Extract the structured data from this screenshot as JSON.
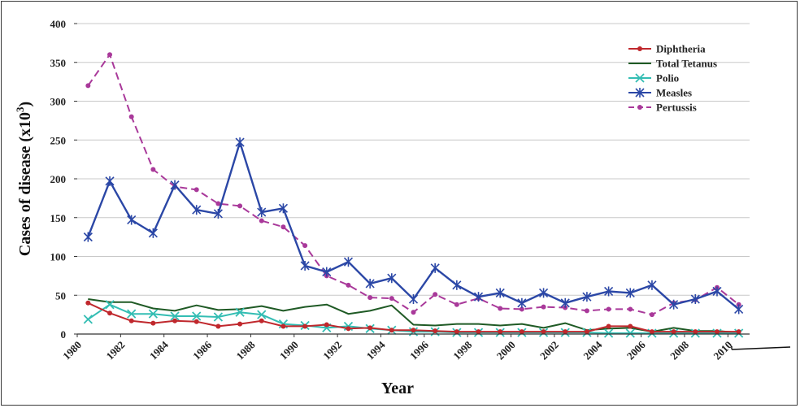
{
  "chart_data": {
    "type": "line",
    "xlabel": "Year",
    "ylabel": "Cases of disease (x10",
    "ylabel_sup": "3",
    "ylabel_end": ")",
    "ylim": [
      0,
      400
    ],
    "yticks": [
      0,
      50,
      100,
      150,
      200,
      250,
      300,
      350,
      400
    ],
    "xticks": [
      1980,
      1982,
      1984,
      1986,
      1988,
      1990,
      1992,
      1994,
      1996,
      1998,
      2000,
      2002,
      2004,
      2006,
      2008,
      2010
    ],
    "xlim": [
      1980,
      2011
    ],
    "grid": true,
    "legend_position": "top-right",
    "series": [
      {
        "name": "Diphtheria",
        "color": "#c0282d",
        "marker": "dot",
        "x": [
          1980.5,
          1981.5,
          1982.5,
          1983.5,
          1984.5,
          1985.5,
          1986.5,
          1987.5,
          1988.5,
          1989.5,
          1990.5,
          1991.5,
          1992.5,
          1993.5,
          1994.5,
          1995.5,
          1996.5,
          1997.5,
          1998.5,
          1999.5,
          2000.5,
          2001.5,
          2002.5,
          2003.5,
          2004.5,
          2005.5,
          2006.5,
          2007.5,
          2008.5,
          2009.5,
          2010.5
        ],
        "y": [
          40,
          27,
          17,
          14,
          17,
          16,
          10,
          13,
          17,
          10,
          10,
          12,
          7,
          8,
          5,
          5,
          4,
          3,
          3,
          3,
          3,
          3,
          3,
          3,
          10,
          10,
          3,
          3,
          3,
          3,
          3
        ]
      },
      {
        "name": "Total Tetanus",
        "color": "#1f5a25",
        "marker": "none",
        "x": [
          1980.5,
          1981.5,
          1982.5,
          1983.5,
          1984.5,
          1985.5,
          1986.5,
          1987.5,
          1988.5,
          1989.5,
          1990.5,
          1991.5,
          1992.5,
          1993.5,
          1994.5,
          1995.5,
          1996.5,
          1997.5,
          1998.5,
          1999.5,
          2000.5,
          2001.5,
          2002.5,
          2003.5,
          2004.5,
          2005.5,
          2006.5,
          2007.5,
          2008.5,
          2009.5,
          2010.5
        ],
        "y": [
          45,
          41,
          41,
          33,
          30,
          37,
          31,
          32,
          36,
          30,
          35,
          38,
          26,
          30,
          37,
          12,
          11,
          13,
          13,
          11,
          13,
          8,
          14,
          5,
          7,
          8,
          3,
          8,
          4,
          4,
          2
        ]
      },
      {
        "name": "Polio",
        "color": "#33bdb3",
        "marker": "x",
        "x": [
          1980.5,
          1981.5,
          1982.5,
          1983.5,
          1984.5,
          1985.5,
          1986.5,
          1987.5,
          1988.5,
          1989.5,
          1990.5,
          1991.5,
          1992.5,
          1993.5,
          1994.5,
          1995.5,
          1996.5,
          1997.5,
          1998.5,
          1999.5,
          2000.5,
          2001.5,
          2002.5,
          2003.5,
          2004.5,
          2005.5,
          2006.5,
          2007.5,
          2008.5,
          2009.5,
          2010.5
        ],
        "y": [
          19,
          38,
          26,
          26,
          23,
          23,
          22,
          28,
          25,
          13,
          11,
          8,
          10,
          7,
          5,
          3,
          3,
          2,
          2,
          2,
          2,
          2,
          2,
          2,
          1,
          1,
          1,
          1,
          1,
          1,
          1
        ]
      },
      {
        "name": "Measles",
        "color": "#2b47a6",
        "marker": "asterisk",
        "x": [
          1980.5,
          1981.5,
          1982.5,
          1983.5,
          1984.5,
          1985.5,
          1986.5,
          1987.5,
          1988.5,
          1989.5,
          1990.5,
          1991.5,
          1992.5,
          1993.5,
          1994.5,
          1995.5,
          1996.5,
          1997.5,
          1998.5,
          1999.5,
          2000.5,
          2001.5,
          2002.5,
          2003.5,
          2004.5,
          2005.5,
          2006.5,
          2007.5,
          2008.5,
          2009.5,
          2010.5
        ],
        "y": [
          125,
          197,
          147,
          130,
          192,
          160,
          155,
          247,
          157,
          162,
          88,
          80,
          93,
          65,
          72,
          45,
          85,
          63,
          48,
          53,
          40,
          53,
          40,
          48,
          55,
          53,
          63,
          38,
          45,
          55,
          32
        ]
      },
      {
        "name": "Pertussis",
        "color": "#a9399a",
        "marker": "dot",
        "x": [
          1980.5,
          1981.5,
          1982.5,
          1983.5,
          1984.5,
          1985.5,
          1986.5,
          1987.5,
          1988.5,
          1989.5,
          1990.5,
          1991.5,
          1992.5,
          1993.5,
          1994.5,
          1995.5,
          1996.5,
          1997.5,
          1998.5,
          1999.5,
          2000.5,
          2001.5,
          2002.5,
          2003.5,
          2004.5,
          2005.5,
          2006.5,
          2007.5,
          2008.5,
          2009.5,
          2010.5
        ],
        "y": [
          320,
          360,
          280,
          212,
          190,
          186,
          168,
          165,
          146,
          138,
          114,
          75,
          63,
          47,
          46,
          28,
          51,
          38,
          46,
          33,
          32,
          35,
          34,
          30,
          32,
          32,
          25,
          40,
          44,
          60,
          38
        ]
      }
    ]
  }
}
